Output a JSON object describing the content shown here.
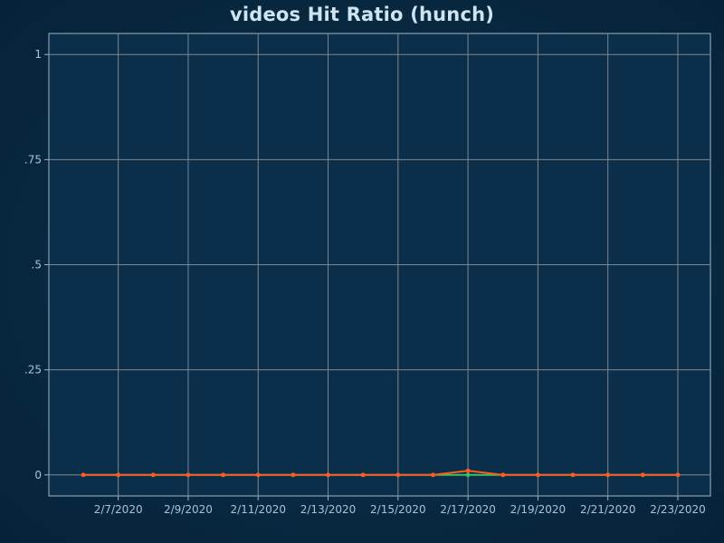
{
  "chart_data": {
    "type": "line",
    "title": "videos Hit Ratio (hunch)",
    "xlabel": "",
    "ylabel": "",
    "x": [
      "2/6/2020",
      "2/7/2020",
      "2/8/2020",
      "2/9/2020",
      "2/10/2020",
      "2/11/2020",
      "2/12/2020",
      "2/13/2020",
      "2/14/2020",
      "2/15/2020",
      "2/16/2020",
      "2/17/2020",
      "2/18/2020",
      "2/19/2020",
      "2/20/2020",
      "2/21/2020",
      "2/22/2020",
      "2/23/2020"
    ],
    "x_tick_labels": [
      "2/7/2020",
      "2/9/2020",
      "2/11/2020",
      "2/13/2020",
      "2/15/2020",
      "2/17/2020",
      "2/19/2020",
      "2/21/2020",
      "2/23/2020"
    ],
    "y_tick_labels": [
      "0",
      ".25",
      ".5",
      ".75",
      "1"
    ],
    "ylim": [
      -0.05,
      1.05
    ],
    "grid": true,
    "series": [
      {
        "color": "#3fbf5a",
        "values": [
          0,
          0,
          0,
          0,
          0,
          0,
          0,
          0,
          0,
          0,
          0,
          0,
          0,
          0,
          0,
          0,
          0,
          0
        ]
      },
      {
        "color": "#ff5a1f",
        "values": [
          0,
          0,
          0,
          0,
          0,
          0,
          0,
          0,
          0,
          0,
          0,
          0.01,
          0,
          0,
          0,
          0,
          0,
          0
        ]
      }
    ]
  }
}
